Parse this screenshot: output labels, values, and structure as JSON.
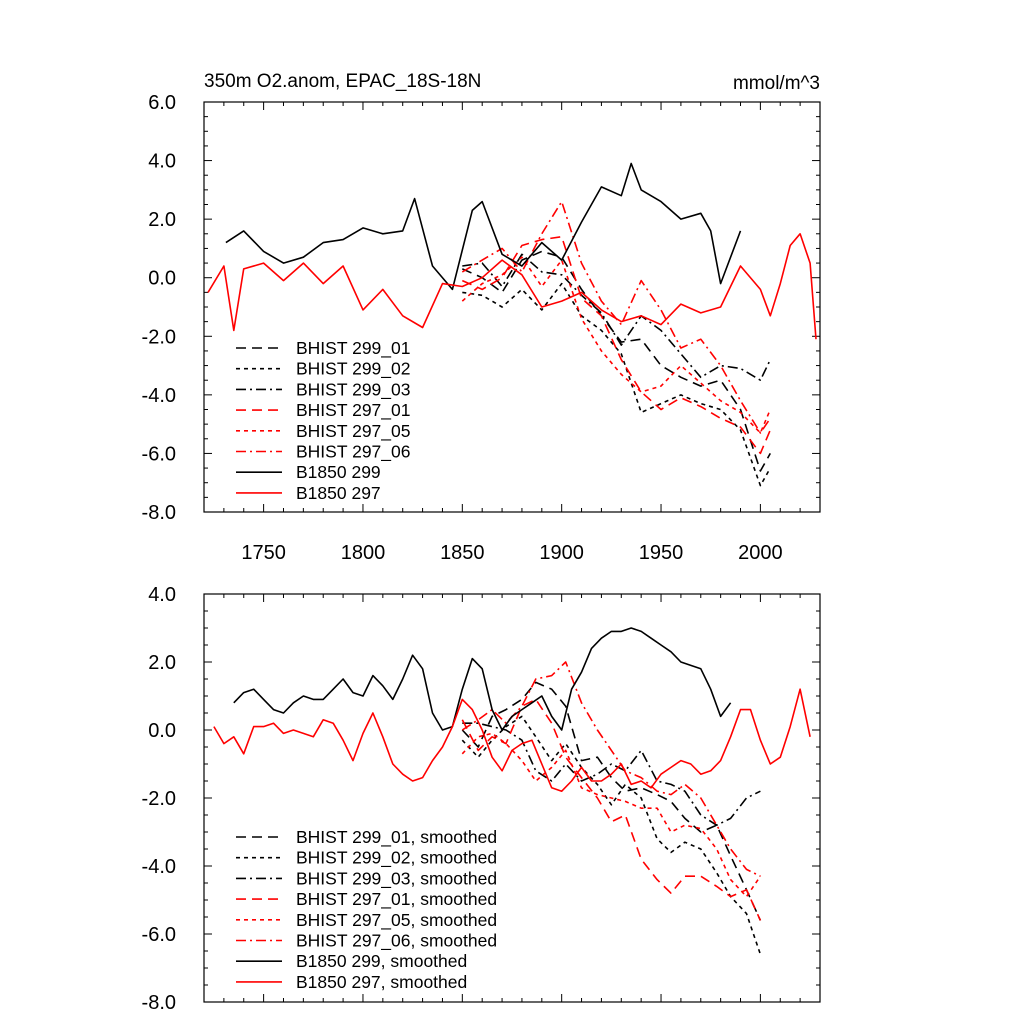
{
  "colors": {
    "black": "#000000",
    "red": "#ff0000"
  },
  "chart_data": [
    {
      "type": "line",
      "title": "350m O2.anom, EPAC_18S-18N",
      "units": "mmol/m^3",
      "xlabel": "",
      "ylabel": "",
      "xlim": [
        1720,
        2030
      ],
      "ylim": [
        -8.0,
        6.0
      ],
      "x_ticks": [
        1750,
        1800,
        1850,
        1900,
        1950,
        2000
      ],
      "x_tick_labels": [
        "1750",
        "1800",
        "1850",
        "1900",
        "1950",
        "2000"
      ],
      "y_ticks": [
        6,
        4,
        2,
        0,
        -2,
        -4,
        -6,
        -8
      ],
      "y_tick_labels": [
        "6.0",
        "4.0",
        "2.0",
        "0.0",
        "-2.0",
        "-4.0",
        "-6.0",
        "-8.0"
      ],
      "legend_position": "bottom-left",
      "series": [
        {
          "name": "BHIST 299_01",
          "color": "black",
          "dash": "long-dash",
          "x": [
            1850,
            1860,
            1870,
            1880,
            1890,
            1900,
            1910,
            1920,
            1930,
            1940,
            1950,
            1960,
            1970,
            1980,
            1990,
            2000,
            2005
          ],
          "y": [
            0.3,
            0.0,
            -0.5,
            0.6,
            0.9,
            0.7,
            -0.4,
            -1.3,
            -2.2,
            -2.1,
            -3.0,
            -3.4,
            -3.7,
            -3.5,
            -4.5,
            -6.6,
            -6.0
          ]
        },
        {
          "name": "BHIST 299_02",
          "color": "black",
          "dash": "short-dash",
          "x": [
            1850,
            1860,
            1870,
            1880,
            1890,
            1900,
            1910,
            1920,
            1930,
            1940,
            1950,
            1960,
            1970,
            1980,
            1990,
            2000,
            2005
          ],
          "y": [
            -0.5,
            -0.6,
            -1.0,
            -0.4,
            -1.1,
            -0.2,
            -1.3,
            -1.8,
            -2.6,
            -4.6,
            -4.3,
            -4.0,
            -4.3,
            -4.5,
            -5.2,
            -7.1,
            -6.5
          ]
        },
        {
          "name": "BHIST 299_03",
          "color": "black",
          "dash": "dash-dot",
          "x": [
            1850,
            1860,
            1870,
            1880,
            1890,
            1900,
            1910,
            1920,
            1930,
            1940,
            1950,
            1960,
            1970,
            1980,
            1990,
            2000,
            2005
          ],
          "y": [
            0.4,
            0.5,
            -0.3,
            0.8,
            0.2,
            0.1,
            -0.6,
            -1.2,
            -2.3,
            -1.3,
            -1.8,
            -2.6,
            -3.4,
            -3.0,
            -3.1,
            -3.5,
            -2.8
          ]
        },
        {
          "name": "BHIST 297_01",
          "color": "red",
          "dash": "long-dash",
          "x": [
            1850,
            1860,
            1870,
            1880,
            1890,
            1900,
            1910,
            1920,
            1930,
            1940,
            1950,
            1960,
            1970,
            1980,
            1990,
            2000,
            2005
          ],
          "y": [
            -0.1,
            -0.4,
            0.0,
            1.1,
            1.3,
            1.4,
            -0.7,
            -1.3,
            -2.8,
            -3.9,
            -4.5,
            -4.1,
            -4.4,
            -4.8,
            -5.1,
            -6.0,
            -5.2
          ]
        },
        {
          "name": "BHIST 297_05",
          "color": "red",
          "dash": "short-dash",
          "x": [
            1850,
            1860,
            1870,
            1880,
            1890,
            1900,
            1910,
            1920,
            1930,
            1940,
            1950,
            1960,
            1970,
            1980,
            1990,
            2000,
            2005
          ],
          "y": [
            -0.8,
            -0.2,
            0.1,
            0.7,
            -0.3,
            0.6,
            -1.4,
            -2.5,
            -3.3,
            -3.9,
            -3.7,
            -3.0,
            -3.6,
            -4.2,
            -4.6,
            -5.3,
            -4.5
          ]
        },
        {
          "name": "BHIST 297_06",
          "color": "red",
          "dash": "dash-dot",
          "x": [
            1850,
            1860,
            1870,
            1880,
            1890,
            1900,
            1910,
            1920,
            1930,
            1940,
            1950,
            1960,
            1970,
            1980,
            1990,
            2000,
            2005
          ],
          "y": [
            0.2,
            0.6,
            1.0,
            0.2,
            1.5,
            2.6,
            0.5,
            -0.8,
            -1.6,
            -0.1,
            -1.1,
            -2.4,
            -2.1,
            -3.0,
            -4.2,
            -5.3,
            -4.8
          ]
        },
        {
          "name": "B1850 299",
          "color": "black",
          "dash": "solid",
          "x": [
            1731,
            1740,
            1750,
            1760,
            1770,
            1780,
            1790,
            1800,
            1810,
            1820,
            1826,
            1835,
            1845,
            1855,
            1860,
            1870,
            1880,
            1890,
            1900,
            1910,
            1920,
            1930,
            1935,
            1940,
            1950,
            1960,
            1970,
            1975,
            1980,
            1990
          ],
          "y": [
            1.2,
            1.6,
            0.9,
            0.5,
            0.7,
            1.2,
            1.3,
            1.7,
            1.5,
            1.6,
            2.7,
            0.4,
            -0.4,
            2.3,
            2.6,
            0.8,
            0.4,
            1.2,
            0.6,
            1.9,
            3.1,
            2.8,
            3.9,
            3.0,
            2.6,
            2.0,
            2.2,
            1.6,
            -0.2,
            1.6
          ]
        },
        {
          "name": "B1850 297",
          "color": "red",
          "dash": "solid",
          "x": [
            1722,
            1730,
            1735,
            1740,
            1750,
            1760,
            1770,
            1780,
            1790,
            1800,
            1810,
            1820,
            1830,
            1840,
            1850,
            1860,
            1870,
            1880,
            1890,
            1900,
            1910,
            1920,
            1930,
            1940,
            1950,
            1960,
            1970,
            1980,
            1990,
            2000,
            2005,
            2010,
            2015,
            2020,
            2025,
            2028
          ],
          "y": [
            -0.5,
            0.4,
            -1.8,
            0.3,
            0.5,
            -0.1,
            0.5,
            -0.2,
            0.4,
            -1.1,
            -0.4,
            -1.3,
            -1.7,
            -0.2,
            -0.3,
            0.0,
            0.6,
            0.1,
            -1.0,
            -0.8,
            -0.5,
            -1.1,
            -1.5,
            -1.3,
            -1.6,
            -0.9,
            -1.2,
            -1.0,
            0.4,
            -0.4,
            -1.3,
            -0.2,
            1.1,
            1.5,
            0.5,
            -2.1
          ]
        }
      ]
    },
    {
      "type": "line",
      "title": "",
      "xlabel": "",
      "ylabel": "",
      "xlim": [
        1720,
        2030
      ],
      "ylim": [
        -8.0,
        4.0
      ],
      "y_ticks": [
        4,
        2,
        0,
        -2,
        -4,
        -6,
        -8
      ],
      "y_tick_labels": [
        "4.0",
        "2.0",
        "0.0",
        "-2.0",
        "-4.0",
        "-6.0",
        "-8.0"
      ],
      "legend_position": "bottom-left",
      "series": [
        {
          "name": "BHIST 299_01, smoothed",
          "color": "black",
          "dash": "long-dash",
          "x": [
            1850,
            1858,
            1865,
            1872,
            1880,
            1887,
            1895,
            1902,
            1910,
            1918,
            1925,
            1932,
            1940,
            1948,
            1955,
            1962,
            1970,
            1978,
            1985,
            1993,
            2000
          ],
          "y": [
            0.0,
            -0.5,
            0.4,
            0.6,
            0.9,
            1.4,
            1.2,
            0.7,
            -0.9,
            -0.8,
            -1.4,
            -1.8,
            -1.7,
            -1.9,
            -2.1,
            -2.6,
            -3.0,
            -2.8,
            -3.7,
            -4.7,
            -5.6
          ]
        },
        {
          "name": "BHIST 299_02, smoothed",
          "color": "black",
          "dash": "short-dash",
          "x": [
            1850,
            1858,
            1865,
            1872,
            1880,
            1887,
            1895,
            1902,
            1910,
            1918,
            1925,
            1932,
            1940,
            1948,
            1955,
            1962,
            1970,
            1978,
            1985,
            1993,
            2000
          ],
          "y": [
            -0.3,
            -0.8,
            -0.3,
            0.1,
            0.4,
            -0.2,
            -0.9,
            -0.4,
            -1.1,
            -1.6,
            -2.2,
            -1.6,
            -2.0,
            -3.2,
            -3.6,
            -3.3,
            -3.5,
            -4.2,
            -4.9,
            -5.4,
            -6.6
          ]
        },
        {
          "name": "BHIST 299_03, smoothed",
          "color": "black",
          "dash": "dash-dot",
          "x": [
            1850,
            1858,
            1865,
            1872,
            1880,
            1887,
            1895,
            1902,
            1910,
            1918,
            1925,
            1932,
            1940,
            1948,
            1955,
            1962,
            1970,
            1978,
            1985,
            1993,
            2000
          ],
          "y": [
            0.2,
            0.2,
            0.1,
            0.0,
            -0.3,
            -1.2,
            -1.5,
            -1.0,
            -1.5,
            -1.3,
            -1.0,
            -1.2,
            -0.6,
            -1.5,
            -1.6,
            -1.8,
            -2.5,
            -2.8,
            -2.6,
            -2.0,
            -1.8
          ]
        },
        {
          "name": "BHIST 297_01, smoothed",
          "color": "red",
          "dash": "long-dash",
          "x": [
            1850,
            1858,
            1865,
            1872,
            1880,
            1887,
            1895,
            1902,
            1910,
            1918,
            1925,
            1932,
            1940,
            1948,
            1955,
            1962,
            1970,
            1978,
            1985,
            1993,
            2000
          ],
          "y": [
            0.3,
            -0.6,
            -0.2,
            -0.4,
            0.7,
            0.9,
            0.2,
            -0.8,
            -1.4,
            -2.0,
            -2.7,
            -2.5,
            -3.8,
            -4.4,
            -4.8,
            -4.3,
            -4.3,
            -4.6,
            -4.9,
            -4.7,
            -5.6
          ]
        },
        {
          "name": "BHIST 297_05, smoothed",
          "color": "red",
          "dash": "short-dash",
          "x": [
            1850,
            1858,
            1865,
            1872,
            1880,
            1887,
            1895,
            1902,
            1910,
            1918,
            1925,
            1932,
            1940,
            1948,
            1955,
            1962,
            1970,
            1978,
            1985,
            1993,
            2000
          ],
          "y": [
            -0.7,
            -0.2,
            -0.1,
            -0.4,
            -0.9,
            -1.5,
            -1.1,
            -0.6,
            -1.7,
            -1.9,
            -2.0,
            -2.1,
            -2.3,
            -2.3,
            -3.0,
            -2.8,
            -2.9,
            -3.5,
            -4.4,
            -4.9,
            -4.3
          ]
        },
        {
          "name": "BHIST 297_06, smoothed",
          "color": "red",
          "dash": "dash-dot",
          "x": [
            1850,
            1858,
            1865,
            1872,
            1880,
            1887,
            1895,
            1902,
            1910,
            1918,
            1925,
            1932,
            1940,
            1948,
            1955,
            1962,
            1970,
            1978,
            1985,
            1993,
            2000
          ],
          "y": [
            0.0,
            0.3,
            0.6,
            0.2,
            0.7,
            1.5,
            1.6,
            2.0,
            0.8,
            0.0,
            -0.6,
            -1.2,
            -1.4,
            -1.8,
            -1.9,
            -1.6,
            -2.0,
            -2.8,
            -3.5,
            -4.1,
            -4.3
          ]
        },
        {
          "name": "B1850 299, smoothed",
          "color": "black",
          "dash": "solid",
          "x": [
            1735,
            1740,
            1745,
            1750,
            1755,
            1760,
            1765,
            1770,
            1775,
            1780,
            1785,
            1790,
            1795,
            1800,
            1805,
            1810,
            1815,
            1820,
            1825,
            1830,
            1835,
            1840,
            1845,
            1850,
            1855,
            1860,
            1865,
            1870,
            1875,
            1880,
            1885,
            1890,
            1895,
            1900,
            1905,
            1910,
            1915,
            1920,
            1925,
            1930,
            1935,
            1940,
            1945,
            1950,
            1955,
            1960,
            1965,
            1970,
            1975,
            1980,
            1985
          ],
          "y": [
            0.8,
            1.1,
            1.2,
            0.9,
            0.6,
            0.5,
            0.8,
            1.0,
            0.9,
            0.9,
            1.2,
            1.5,
            1.1,
            1.0,
            1.6,
            1.3,
            0.9,
            1.5,
            2.2,
            1.8,
            0.5,
            0.0,
            0.1,
            1.2,
            2.1,
            1.8,
            0.6,
            0.0,
            0.4,
            0.6,
            0.8,
            1.0,
            0.4,
            0.0,
            1.2,
            1.7,
            2.4,
            2.7,
            2.9,
            2.9,
            3.0,
            2.9,
            2.7,
            2.5,
            2.3,
            2.0,
            1.9,
            1.8,
            1.2,
            0.4,
            0.8
          ]
        },
        {
          "name": "B1850 297, smoothed",
          "color": "red",
          "dash": "solid",
          "x": [
            1725,
            1730,
            1735,
            1740,
            1745,
            1750,
            1755,
            1760,
            1765,
            1770,
            1775,
            1780,
            1785,
            1790,
            1795,
            1800,
            1805,
            1810,
            1815,
            1820,
            1825,
            1830,
            1835,
            1840,
            1845,
            1850,
            1855,
            1860,
            1865,
            1870,
            1875,
            1880,
            1885,
            1890,
            1895,
            1900,
            1905,
            1910,
            1915,
            1920,
            1925,
            1930,
            1935,
            1940,
            1945,
            1950,
            1955,
            1960,
            1965,
            1970,
            1975,
            1980,
            1985,
            1990,
            1995,
            2000,
            2005,
            2010,
            2015,
            2020,
            2025
          ],
          "y": [
            0.1,
            -0.4,
            -0.2,
            -0.7,
            0.1,
            0.1,
            0.2,
            -0.1,
            0.0,
            -0.1,
            -0.2,
            0.3,
            0.2,
            -0.3,
            -0.9,
            -0.1,
            0.5,
            -0.2,
            -1.0,
            -1.3,
            -1.5,
            -1.4,
            -0.9,
            -0.5,
            0.1,
            0.9,
            0.6,
            0.0,
            -0.8,
            -1.2,
            -0.6,
            -0.4,
            -0.3,
            -1.0,
            -1.7,
            -1.8,
            -1.5,
            -1.1,
            -1.5,
            -1.5,
            -1.3,
            -1.0,
            -1.6,
            -1.5,
            -1.7,
            -1.3,
            -1.1,
            -0.9,
            -1.0,
            -1.3,
            -1.2,
            -0.9,
            -0.2,
            0.6,
            0.6,
            -0.3,
            -1.0,
            -0.8,
            0.1,
            1.2,
            -0.2
          ]
        }
      ]
    }
  ]
}
